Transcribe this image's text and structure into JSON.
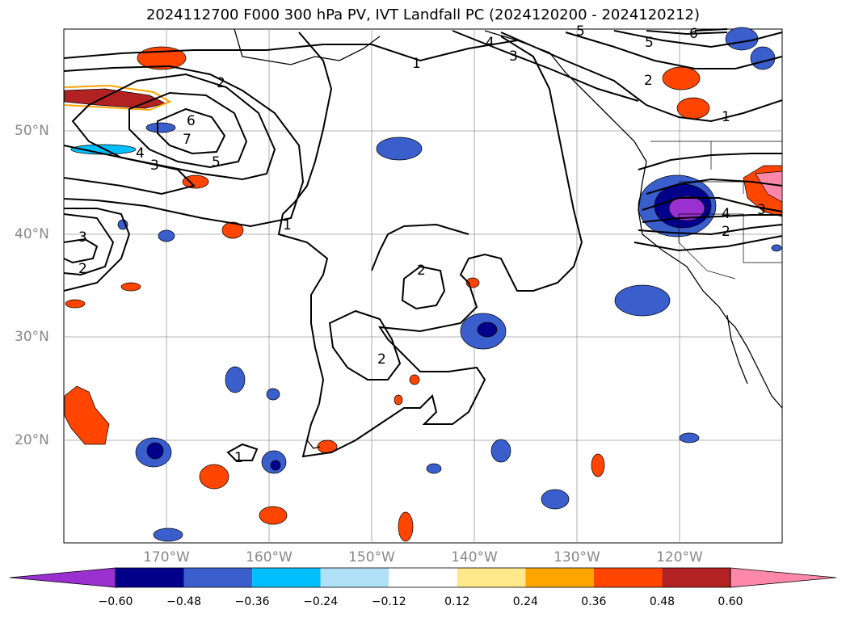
{
  "title": "2024112700 F000 300 hPa PV, IVT Landfall PC (2024120200 - 2024120212)",
  "lat_labels": [
    "50°N",
    "40°N",
    "30°N",
    "20°N"
  ],
  "lon_labels": [
    "170°W",
    "160°W",
    "150°W",
    "140°W",
    "130°W",
    "120°W"
  ],
  "contour_labels": [
    "1",
    "2",
    "3",
    "4",
    "5",
    "6",
    "7"
  ],
  "colorbar": {
    "ticks": [
      "−0.60",
      "−0.48",
      "−0.36",
      "−0.24",
      "−0.12",
      "0.12",
      "0.24",
      "0.36",
      "0.48",
      "0.60"
    ],
    "colors": [
      "#9b30d0",
      "#00008b",
      "#3a5fcd",
      "#00bfff",
      "#b0e0f8",
      "#ffffff",
      "#ffe88a",
      "#ffa500",
      "#ff4500",
      "#b22222",
      "#ff88aa"
    ]
  }
}
